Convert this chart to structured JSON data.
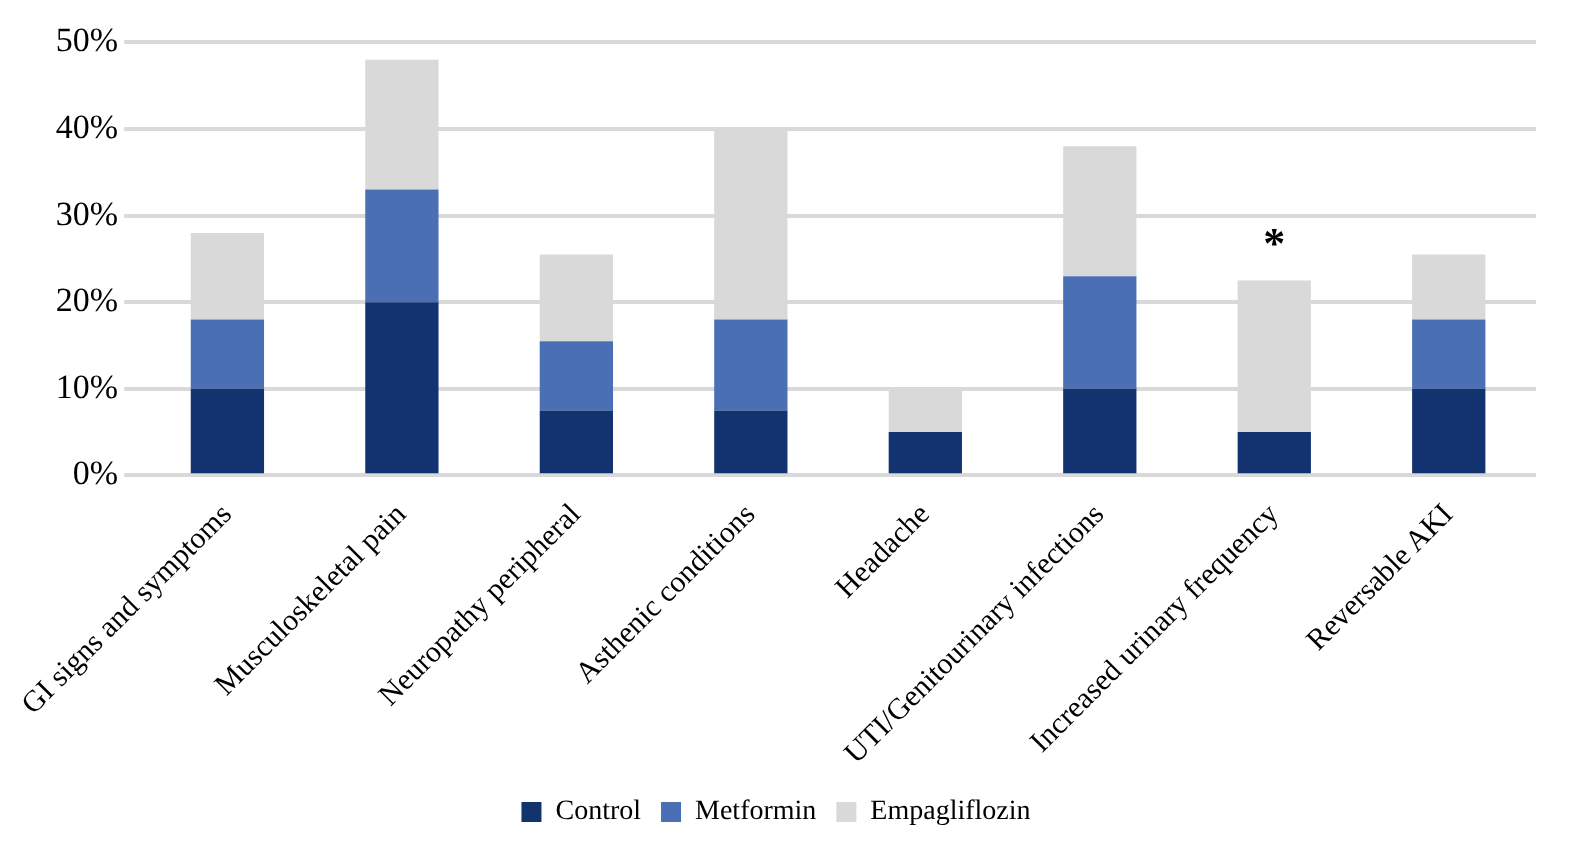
{
  "chart_data": {
    "type": "bar",
    "stacked": true,
    "categories": [
      "GI signs and symptoms",
      "Musculoskeletal pain",
      "Neuropathy peripheral",
      "Asthenic conditions",
      "Headache",
      "UTI/Genitourinary infections",
      "Increased urinary frequency",
      "Reversable AKI"
    ],
    "series": [
      {
        "name": "Control",
        "color": "#12336f",
        "values": [
          10,
          20,
          7.5,
          7.5,
          5,
          10,
          5,
          10
        ]
      },
      {
        "name": "Metformin",
        "color": "#4a6fb5",
        "values": [
          8,
          13,
          8,
          10.5,
          0,
          13,
          0,
          8
        ]
      },
      {
        "name": "Empagliflozin",
        "color": "#d9d9d9",
        "values": [
          10,
          15,
          10,
          22,
          5,
          15,
          17.5,
          7.5
        ]
      }
    ],
    "ylim": [
      0,
      50
    ],
    "yticks": [
      {
        "value": 0,
        "label": "0%"
      },
      {
        "value": 10,
        "label": "10%"
      },
      {
        "value": 20,
        "label": "20%"
      },
      {
        "value": 30,
        "label": "30%"
      },
      {
        "value": 40,
        "label": "40%"
      },
      {
        "value": 50,
        "label": "50%"
      }
    ],
    "grid": "y",
    "legend": "bottom",
    "annotations": [
      {
        "text": "*",
        "x": "Increased urinary frequency",
        "y": 22.5
      }
    ]
  }
}
